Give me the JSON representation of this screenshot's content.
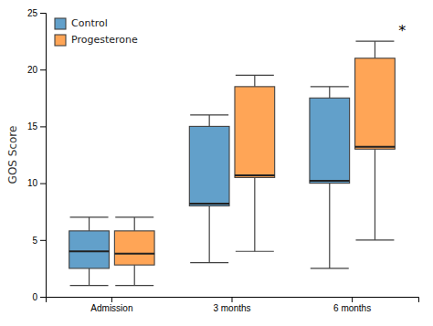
{
  "chart_data": {
    "type": "box",
    "categories": [
      "Admission",
      "3 months",
      "6 months"
    ],
    "series": [
      {
        "name": "Control",
        "values": [
          {
            "whisker_low": 1.0,
            "q1": 2.5,
            "median": 4.0,
            "q3": 5.8,
            "whisker_high": 7.0
          },
          {
            "whisker_low": 3.0,
            "q1": 8.0,
            "median": 8.2,
            "q3": 15.0,
            "whisker_high": 16.0
          },
          {
            "whisker_low": 2.5,
            "q1": 10.0,
            "median": 10.2,
            "q3": 17.5,
            "whisker_high": 18.5
          }
        ]
      },
      {
        "name": "Progesterone",
        "values": [
          {
            "whisker_low": 1.0,
            "q1": 2.8,
            "median": 3.8,
            "q3": 5.8,
            "whisker_high": 7.0
          },
          {
            "whisker_low": 4.0,
            "q1": 10.5,
            "median": 10.7,
            "q3": 18.5,
            "whisker_high": 19.5
          },
          {
            "whisker_low": 5.0,
            "q1": 13.0,
            "median": 13.2,
            "q3": 21.0,
            "whisker_high": 22.5
          }
        ]
      }
    ],
    "y_label": "GOS Score",
    "ylim": [
      0,
      25
    ],
    "yticks": [
      0,
      5,
      10,
      15,
      20,
      25
    ],
    "annotations": [
      {
        "text": "*",
        "x": "6 months",
        "y": 23.0
      }
    ],
    "legend": "upper left",
    "grid": false
  }
}
